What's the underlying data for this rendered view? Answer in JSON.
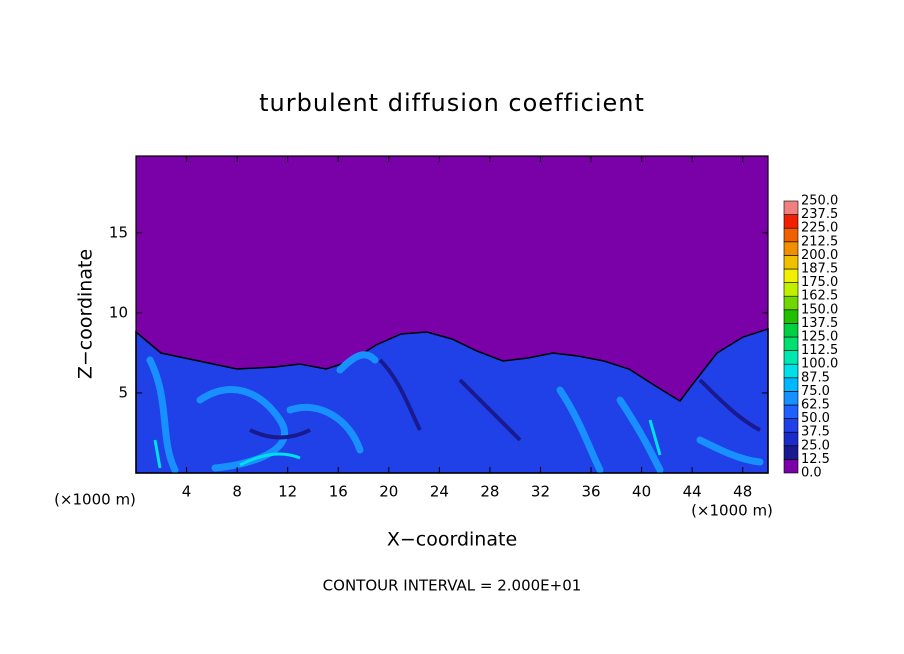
{
  "chart_data": {
    "type": "contour",
    "title": "turbulent diffusion coefficient",
    "x_label": "X−coordinate",
    "y_label": "Z−coordinate",
    "x_unit": "(×1000 m)",
    "y_unit": "(×1000 m)",
    "footer": "CONTOUR INTERVAL = 2.000E+01",
    "xlim": [
      0,
      50
    ],
    "ylim": [
      0,
      19.8
    ],
    "xticks": [
      4,
      8,
      12,
      16,
      20,
      24,
      28,
      32,
      36,
      40,
      44,
      48
    ],
    "yticks": [
      5,
      10,
      15
    ],
    "colorbar": {
      "levels": [
        {
          "value": 0,
          "label": "0.0"
        },
        {
          "value": 12.5,
          "label": "12.5"
        },
        {
          "value": 25,
          "label": "25.0"
        },
        {
          "value": 37.5,
          "label": "37.5"
        },
        {
          "value": 50,
          "label": "50.0"
        },
        {
          "value": 62.5,
          "label": "62.5"
        },
        {
          "value": 75,
          "label": "75.0"
        },
        {
          "value": 87.5,
          "label": "87.5"
        },
        {
          "value": 100,
          "label": "100.0"
        },
        {
          "value": 112.5,
          "label": "112.5"
        },
        {
          "value": 125,
          "label": "125.0"
        },
        {
          "value": 137.5,
          "label": "137.5"
        },
        {
          "value": 150,
          "label": "150.0"
        },
        {
          "value": 162.5,
          "label": "162.5"
        },
        {
          "value": 175,
          "label": "175.0"
        },
        {
          "value": 187.5,
          "label": "187.5"
        },
        {
          "value": 200,
          "label": "200.0"
        },
        {
          "value": 212.5,
          "label": "212.5"
        },
        {
          "value": 225,
          "label": "225.0"
        },
        {
          "value": 237.5,
          "label": "237.5"
        },
        {
          "value": 250,
          "label": "250.0"
        }
      ],
      "colors": [
        "#7a00a8",
        "#1a1a90",
        "#1c2cc8",
        "#2040e8",
        "#2060ff",
        "#1890ff",
        "#00b8ff",
        "#00e0e8",
        "#00e8b0",
        "#00e070",
        "#00d040",
        "#20c000",
        "#70d800",
        "#c0f000",
        "#f0f000",
        "#f0c000",
        "#f09000",
        "#f06000",
        "#f02000",
        "#f08080"
      ]
    }
  }
}
